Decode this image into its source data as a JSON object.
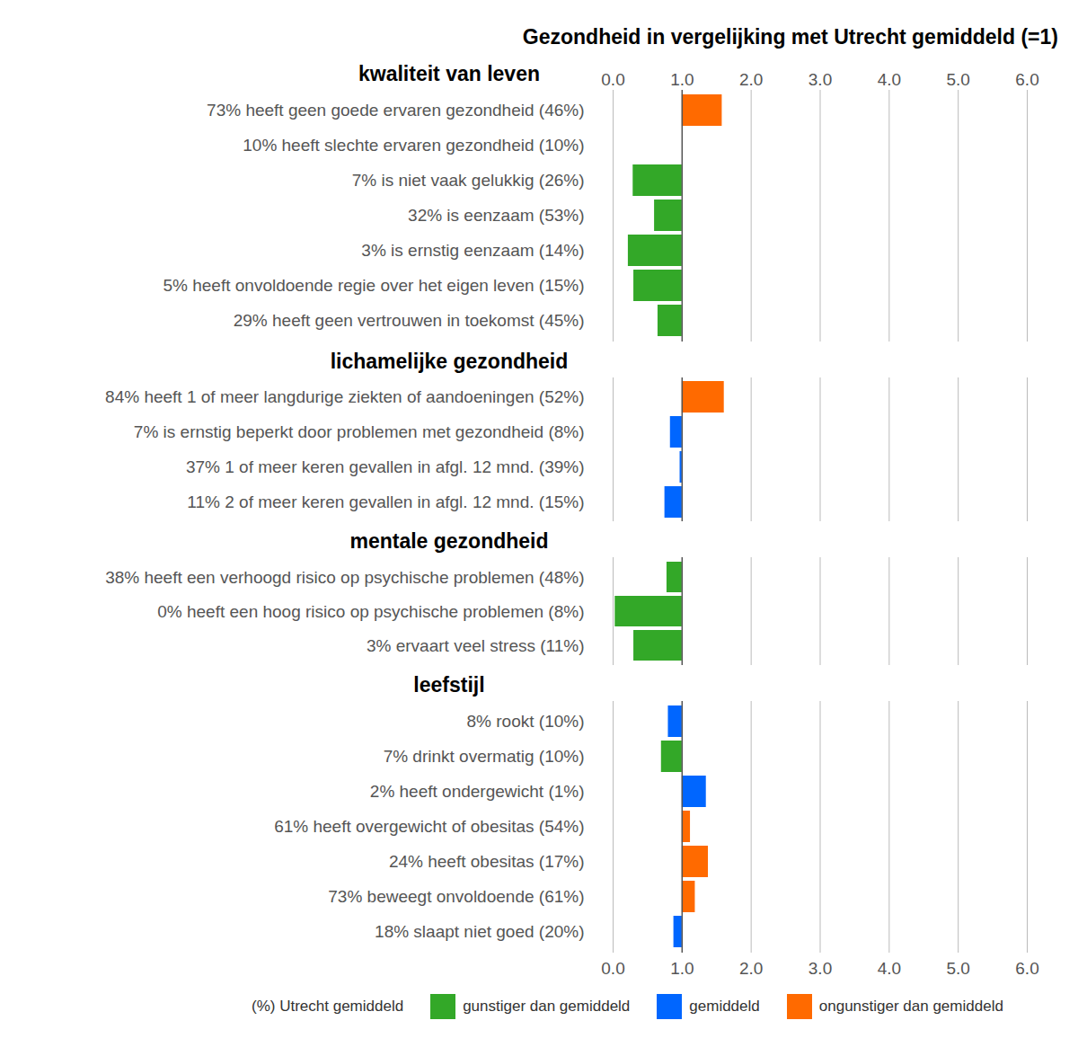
{
  "chart_data": {
    "type": "bar",
    "orientation": "horizontal",
    "title": "Gezondheid in vergelijking met Utrecht gemiddeld (=1)",
    "baseline": 1,
    "xlim": [
      0,
      6
    ],
    "xticks": [
      0,
      1,
      2,
      3,
      4,
      5,
      6
    ],
    "grid": true,
    "groups": [
      {
        "name": "kwaliteit van leven",
        "categories": [
          "73% heeft geen goede ervaren gezondheid (46%)",
          "10% heeft slechte ervaren gezondheid (10%)",
          "7% is niet vaak gelukkig (26%)",
          "32% is eenzaam (53%)",
          "3% is ernstig eenzaam (14%)",
          "5% heeft onvoldoende regie over het eigen leven (15%)",
          "29% heeft geen vertrouwen in toekomst (45%)"
        ],
        "values": [
          1.58,
          1.0,
          0.29,
          0.6,
          0.22,
          0.3,
          0.65
        ],
        "colors": [
          "#ff6a00",
          "#0066ff",
          "#33a828",
          "#33a828",
          "#33a828",
          "#33a828",
          "#33a828"
        ]
      },
      {
        "name": "lichamelijke gezondheid",
        "categories": [
          "84% heeft 1 of meer langdurige ziekten of aandoeningen (52%)",
          "7% is ernstig beperkt door problemen met gezondheid (8%)",
          "37% 1 of meer keren gevallen in afgl. 12 mnd. (39%)",
          "11% 2 of meer keren gevallen in afgl. 12 mnd. (15%)"
        ],
        "values": [
          1.61,
          0.83,
          0.97,
          0.75
        ],
        "colors": [
          "#ff6a00",
          "#0066ff",
          "#0066ff",
          "#0066ff"
        ]
      },
      {
        "name": "mentale gezondheid",
        "categories": [
          "38% heeft een verhoogd risico op psychische problemen (48%)",
          "0% heeft een hoog risico op psychische problemen (8%)",
          "3% ervaart veel stress (11%)"
        ],
        "values": [
          0.78,
          0.03,
          0.3
        ],
        "colors": [
          "#33a828",
          "#33a828",
          "#33a828"
        ]
      },
      {
        "name": "leefstijl",
        "categories": [
          "8% rookt (10%)",
          "7% drinkt overmatig (10%)",
          "2% heeft ondergewicht (1%)",
          "61% heeft overgewicht of obesitas (54%)",
          "24% heeft obesitas (17%)",
          "73% beweegt onvoldoende (61%)",
          "18% slaapt niet goed (20%)"
        ],
        "values": [
          0.8,
          0.7,
          1.35,
          1.12,
          1.38,
          1.19,
          0.88
        ],
        "colors": [
          "#0066ff",
          "#33a828",
          "#0066ff",
          "#ff6a00",
          "#ff6a00",
          "#ff6a00",
          "#0066ff"
        ]
      }
    ],
    "legend": "bottom",
    "legend_note": "(%) Utrecht gemiddeld",
    "legend_entries": [
      {
        "label": "gunstiger dan gemiddeld",
        "color": "#33a828"
      },
      {
        "label": "gemiddeld",
        "color": "#0066ff"
      },
      {
        "label": "ongunstiger dan gemiddeld",
        "color": "#ff6a00"
      }
    ]
  }
}
